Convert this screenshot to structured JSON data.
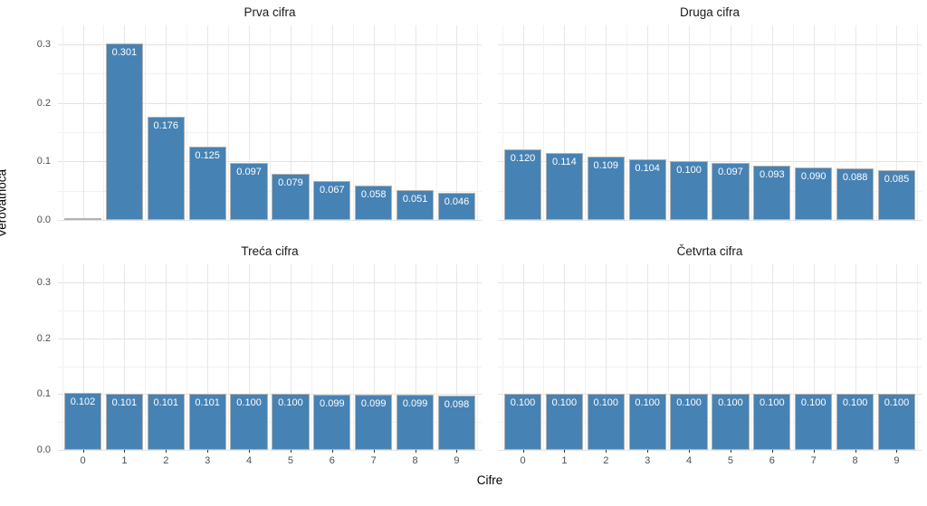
{
  "figure": {
    "y_axis_title": "Verovatnoća",
    "x_axis_title": "Cifre",
    "y_ticks": [
      "0.0",
      "0.1",
      "0.2",
      "0.3"
    ],
    "x_ticks": [
      "0",
      "1",
      "2",
      "3",
      "4",
      "5",
      "6",
      "7",
      "8",
      "9"
    ]
  },
  "chart_data": {
    "type": "bar",
    "title": "",
    "xlabel": "Cifre",
    "ylabel": "Verovatnoća",
    "categories": [
      0,
      1,
      2,
      3,
      4,
      5,
      6,
      7,
      8,
      9
    ],
    "ylim": [
      0,
      0.3325
    ],
    "y_major_ticks": [
      0.0,
      0.1,
      0.2,
      0.3
    ],
    "y_minor_ticks": [
      0.05,
      0.15,
      0.25
    ],
    "grid": "on",
    "legend": "none",
    "bar_color": "#4682b4",
    "bar_border_color": "#b3b3b3",
    "bar_label_color": "#ffffff",
    "facets": [
      {
        "title": "Prva cifra",
        "slug": "prva-cifra",
        "values": [
          0.0,
          0.301,
          0.176,
          0.125,
          0.097,
          0.079,
          0.067,
          0.058,
          0.051,
          0.046
        ],
        "labels": [
          "",
          "0.301",
          "0.176",
          "0.125",
          "0.097",
          "0.079",
          "0.067",
          "0.058",
          "0.051",
          "0.046"
        ]
      },
      {
        "title": "Druga cifra",
        "slug": "druga-cifra",
        "values": [
          0.12,
          0.114,
          0.109,
          0.104,
          0.1,
          0.097,
          0.093,
          0.09,
          0.088,
          0.085
        ],
        "labels": [
          "0.120",
          "0.114",
          "0.109",
          "0.104",
          "0.100",
          "0.097",
          "0.093",
          "0.090",
          "0.088",
          "0.085"
        ]
      },
      {
        "title": "Treća cifra",
        "slug": "treca-cifra",
        "values": [
          0.102,
          0.101,
          0.101,
          0.101,
          0.1,
          0.1,
          0.099,
          0.099,
          0.099,
          0.098
        ],
        "labels": [
          "0.102",
          "0.101",
          "0.101",
          "0.101",
          "0.100",
          "0.100",
          "0.099",
          "0.099",
          "0.099",
          "0.098"
        ]
      },
      {
        "title": "Četvrta cifra",
        "slug": "cetvrta-cifra",
        "values": [
          0.1,
          0.1,
          0.1,
          0.1,
          0.1,
          0.1,
          0.1,
          0.1,
          0.1,
          0.1
        ],
        "labels": [
          "0.100",
          "0.100",
          "0.100",
          "0.100",
          "0.100",
          "0.100",
          "0.100",
          "0.100",
          "0.100",
          "0.100"
        ]
      }
    ]
  }
}
